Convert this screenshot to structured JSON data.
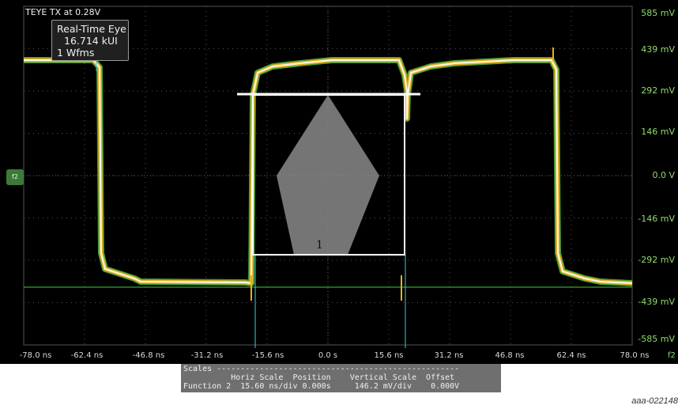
{
  "title": "TEYE TX at 0.28V",
  "info_box": {
    "line1": "Real-Time Eye",
    "line2": "16.714 kUI",
    "line3": "1 Wfms"
  },
  "ref_marker_label": "f2",
  "mask_number": "1",
  "x_axis_channel": "f2",
  "y_axis": {
    "tick_labels": [
      "585 mV",
      "439 mV",
      "292 mV",
      "146 mV",
      "0.0 V",
      "-146 mV",
      "-292 mV",
      "-439 mV",
      "-585 mV"
    ],
    "values_mV": [
      585,
      439,
      292,
      146,
      0,
      -146,
      -292,
      -439,
      -585
    ]
  },
  "x_axis": {
    "tick_labels": [
      "-78.0 ns",
      "-62.4 ns",
      "-46.8 ns",
      "-31.2 ns",
      "-15.6 ns",
      "0.0 s",
      "15.6 ns",
      "31.2 ns",
      "46.8 ns",
      "62.4 ns",
      "78.0 ns"
    ],
    "values_ns": [
      -78.0,
      -62.4,
      -46.8,
      -31.2,
      -15.6,
      0.0,
      15.6,
      31.2,
      46.8,
      62.4,
      78.0
    ]
  },
  "scales_panel": {
    "header": "Scales ---------------------------------------------------",
    "columns": "          Horiz Scale  Position    Vertical Scale  Offset",
    "row": "Function 2  15.60 ns/div 0.000s     146.2 mV/div    0.000V",
    "function": "Function 2",
    "horiz_scale": "15.60 ns/div",
    "position": "0.000s",
    "vertical_scale": "146.2 mV/div",
    "offset": "0.000V"
  },
  "figure_id": "aaa-022148",
  "colors": {
    "background": "#000000",
    "axis_label": "#8fdc6c",
    "trace_outer": "#3c9a3a",
    "trace_mid": "#e8b020",
    "trace_core": "#fff6e8",
    "mask_fill": "#8a8a8a",
    "mask_outline": "#ffffff"
  }
}
